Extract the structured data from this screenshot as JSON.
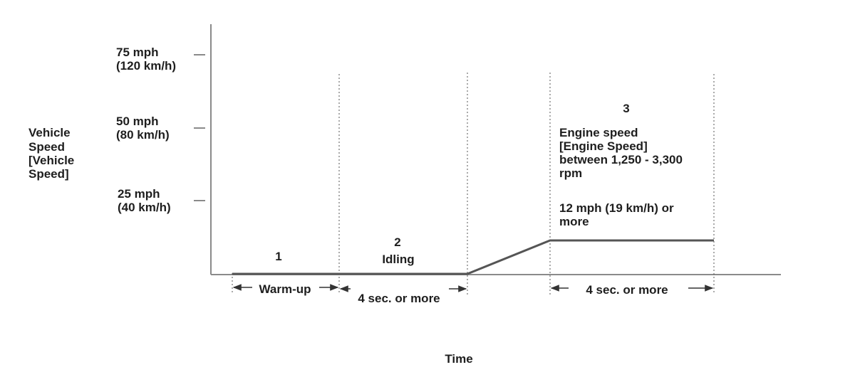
{
  "colors": {
    "axis": "#8a8a8a",
    "line": "#555555",
    "text": "#1e1e1e"
  },
  "y_axis": {
    "label": [
      "Vehicle",
      "Speed",
      "[Vehicle",
      "Speed]"
    ],
    "ticks": [
      {
        "line1": "75 mph",
        "line2": "(120 km/h)"
      },
      {
        "line1": "50 mph",
        "line2": "(80 km/h)"
      },
      {
        "line1": "25 mph",
        "line2": "(40 km/h)"
      }
    ]
  },
  "x_axis": {
    "label": "Time"
  },
  "phases": [
    {
      "number": "1",
      "label": "Warm-up"
    },
    {
      "number": "2",
      "title": "Idling",
      "label": "4 sec. or more"
    },
    {
      "number": "3",
      "conditions": [
        "Engine speed",
        "[Engine Speed]",
        "between 1,250 - 3,300",
        "rpm"
      ],
      "speed_condition": [
        "12 mph (19 km/h) or",
        "more"
      ],
      "label": "4 sec. or more"
    }
  ]
}
